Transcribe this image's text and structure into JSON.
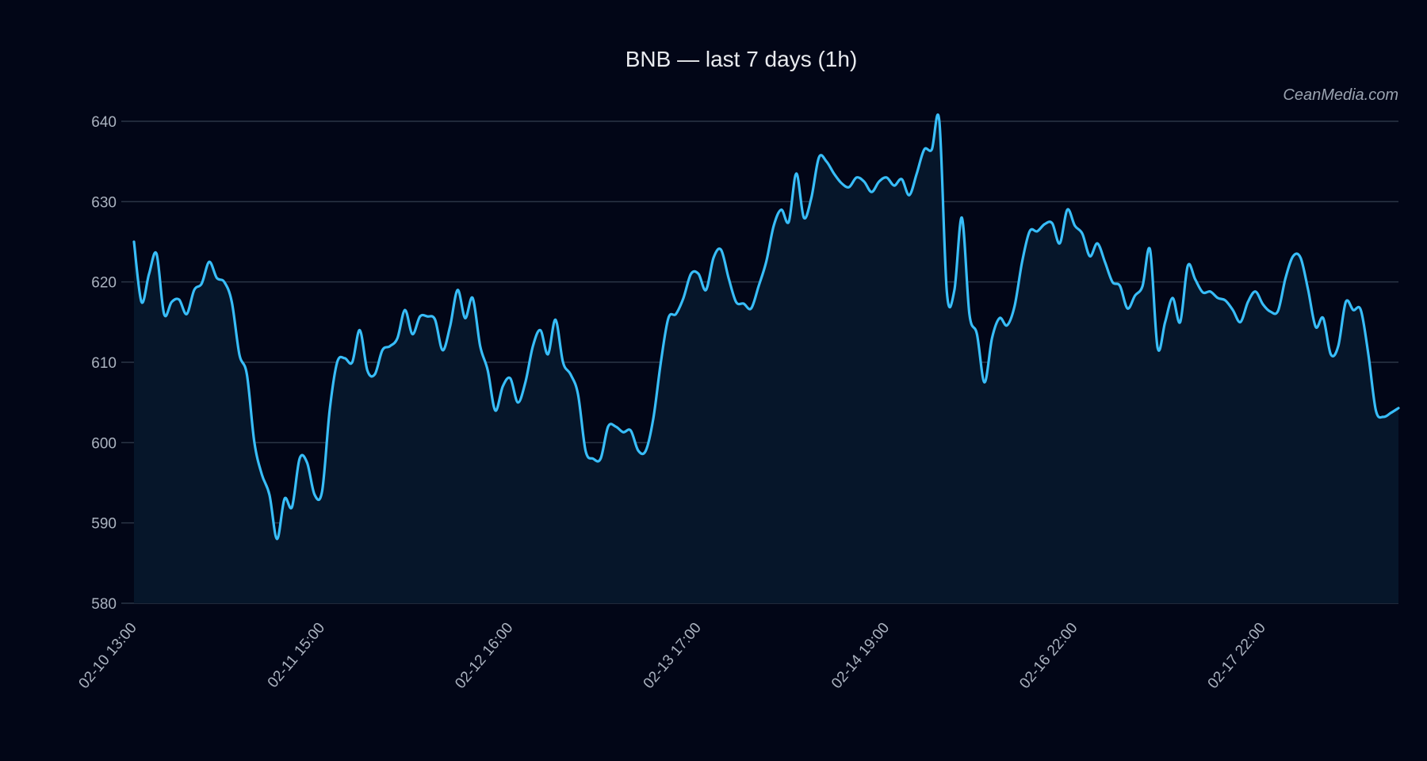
{
  "chart_data": {
    "type": "area",
    "title": "BNB — last 7 days (1h)",
    "watermark": "CeanMedia.com",
    "xlabel": "",
    "ylabel": "",
    "ylim": [
      580,
      640
    ],
    "yticks": [
      580,
      590,
      600,
      610,
      620,
      630,
      640
    ],
    "grid": true,
    "colors": {
      "background": "#020617",
      "line": "#38bdf8",
      "fill": "#06162a",
      "grid": "#2b3546",
      "text": "#aab2bf",
      "title": "#e8eaee"
    },
    "xticks": [
      {
        "index": 0,
        "label": "02-10 13:00"
      },
      {
        "index": 25,
        "label": "02-11 15:00"
      },
      {
        "index": 50,
        "label": "02-12 16:00"
      },
      {
        "index": 75,
        "label": "02-13 17:00"
      },
      {
        "index": 100,
        "label": "02-14 19:00"
      },
      {
        "index": 125,
        "label": "02-16 22:00"
      },
      {
        "index": 150,
        "label": "02-17 22:00"
      }
    ],
    "values": [
      625,
      617.5,
      621,
      623.5,
      616,
      617.5,
      617.8,
      616,
      619,
      619.8,
      622.5,
      620.5,
      620,
      617.5,
      611,
      608.5,
      600,
      596,
      593.5,
      588,
      593,
      592,
      598,
      597.5,
      593.5,
      594,
      604,
      610,
      610.5,
      610,
      614,
      609,
      608.5,
      611.5,
      612,
      613,
      616.5,
      613.5,
      615.7,
      615.7,
      615.3,
      611.5,
      614.5,
      619,
      615.5,
      618,
      612,
      609,
      604,
      607,
      608,
      605,
      607.5,
      612,
      614,
      611,
      615.3,
      610,
      608.5,
      606,
      599,
      598,
      598,
      602,
      602,
      601.3,
      601.5,
      599,
      599,
      603,
      610,
      615.5,
      616,
      618,
      621,
      621,
      619,
      623,
      624,
      620.5,
      617.5,
      617.3,
      616.7,
      619.5,
      622.5,
      627,
      629,
      627.5,
      633.5,
      628,
      630.5,
      635.5,
      635,
      633.5,
      632.3,
      631.8,
      633,
      632.5,
      631.2,
      632.5,
      633,
      632,
      632.8,
      630.8,
      633.5,
      636.5,
      636.5,
      640,
      618.7,
      619,
      628,
      616,
      613.5,
      607.5,
      613,
      615.5,
      614.6,
      617,
      622.5,
      626.3,
      626.3,
      627.2,
      627.3,
      624.8,
      629,
      627,
      626,
      623.2,
      624.8,
      622.5,
      620,
      619.5,
      616.7,
      618.3,
      619.5,
      624,
      611.8,
      615,
      618,
      615,
      622,
      620.3,
      618.7,
      618.8,
      618,
      617.7,
      616.5,
      615,
      617.5,
      618.8,
      617.2,
      616.3,
      616.4,
      620.5,
      623.2,
      623,
      619,
      614.4,
      615.5,
      611,
      612,
      617.5,
      616.5,
      616.5,
      611,
      604,
      603.2,
      603.7,
      604.3
    ]
  }
}
